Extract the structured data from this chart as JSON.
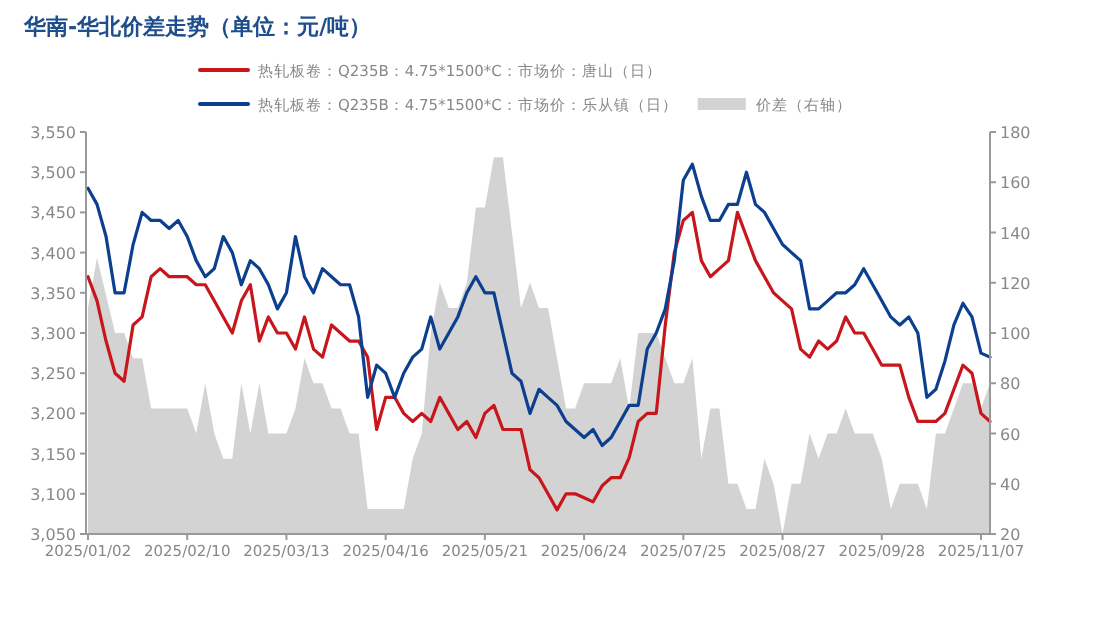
{
  "chart_data": {
    "type": "line",
    "title": "华南-华北价差走势（单位：元/吨）",
    "categories": [
      "2025/01/02",
      null,
      null,
      null,
      null,
      null,
      null,
      null,
      null,
      null,
      null,
      "2025/02/10",
      null,
      null,
      null,
      null,
      null,
      null,
      null,
      null,
      null,
      null,
      "2025/03/13",
      null,
      null,
      null,
      null,
      null,
      null,
      null,
      null,
      null,
      null,
      "2025/04/16",
      null,
      null,
      null,
      null,
      null,
      null,
      null,
      null,
      null,
      null,
      "2025/05/21",
      null,
      null,
      null,
      null,
      null,
      null,
      null,
      null,
      null,
      null,
      "2025/06/24",
      null,
      null,
      null,
      null,
      null,
      null,
      null,
      null,
      null,
      null,
      "2025/07/25",
      null,
      null,
      null,
      null,
      null,
      null,
      null,
      null,
      null,
      null,
      "2025/08/27",
      null,
      null,
      null,
      null,
      null,
      null,
      null,
      null,
      null,
      null,
      "2025/09/28",
      null,
      null,
      null,
      null,
      null,
      null,
      null,
      null,
      null,
      null,
      "2025/11/07",
      null
    ],
    "series": [
      {
        "name": "价差（右轴）",
        "type": "area",
        "axis": "y2",
        "color": "#d3d3d3",
        "values": [
          110,
          130,
          115,
          100,
          100,
          90,
          90,
          70,
          70,
          70,
          70,
          70,
          60,
          80,
          60,
          50,
          50,
          80,
          60,
          80,
          60,
          60,
          60,
          70,
          90,
          80,
          80,
          70,
          70,
          60,
          60,
          30,
          30,
          30,
          30,
          30,
          50,
          60,
          100,
          120,
          110,
          110,
          120,
          150,
          150,
          170,
          170,
          140,
          110,
          120,
          110,
          110,
          90,
          70,
          70,
          80,
          80,
          80,
          80,
          90,
          70,
          100,
          100,
          100,
          90,
          80,
          80,
          90,
          50,
          70,
          70,
          40,
          40,
          30,
          30,
          50,
          40,
          20,
          40,
          40,
          60,
          50,
          60,
          60,
          70,
          60,
          60,
          60,
          50,
          30,
          40,
          40,
          40,
          30,
          60,
          60,
          70,
          80,
          80,
          70,
          80
        ]
      },
      {
        "name": "热轧板卷：Q235B：4.75*1500*C：市场价：唐山（日）",
        "color": "#c8161d",
        "values": [
          3370,
          3340,
          3290,
          3250,
          3240,
          3310,
          3320,
          3370,
          3380,
          3370,
          3370,
          3370,
          3360,
          3360,
          3340,
          3320,
          3300,
          3340,
          3360,
          3290,
          3320,
          3300,
          3300,
          3280,
          3320,
          3280,
          3270,
          3310,
          3300,
          3290,
          3290,
          3270,
          3180,
          3220,
          3220,
          3200,
          3190,
          3200,
          3190,
          3220,
          3200,
          3180,
          3190,
          3170,
          3200,
          3210,
          3180,
          3180,
          3180,
          3130,
          3120,
          3100,
          3080,
          3100,
          3100,
          3095,
          3090,
          3110,
          3120,
          3120,
          3145,
          3190,
          3200,
          3200,
          3310,
          3400,
          3440,
          3450,
          3390,
          3370,
          3380,
          3390,
          3450,
          3420,
          3390,
          3370,
          3350,
          3340,
          3330,
          3280,
          3270,
          3290,
          3280,
          3290,
          3320,
          3300,
          3300,
          3280,
          3260,
          3260,
          3260,
          3220,
          3190,
          3190,
          3190,
          3200,
          3230,
          3260,
          3250,
          3200,
          3190
        ]
      },
      {
        "name": "热轧板卷：Q235B：4.75*1500*C：市场价：乐从镇（日）",
        "color": "#0d3f8f",
        "values": [
          3480,
          3460,
          3420,
          3350,
          3350,
          3410,
          3450,
          3440,
          3440,
          3430,
          3440,
          3420,
          3390,
          3370,
          3380,
          3420,
          3400,
          3360,
          3390,
          3380,
          3360,
          3330,
          3350,
          3420,
          3370,
          3350,
          3380,
          3370,
          3360,
          3360,
          3320,
          3220,
          3260,
          3250,
          3220,
          3250,
          3270,
          3280,
          3320,
          3280,
          3300,
          3320,
          3350,
          3370,
          3350,
          3350,
          3300,
          3250,
          3240,
          3200,
          3230,
          3220,
          3210,
          3190,
          3180,
          3170,
          3180,
          3160,
          3170,
          3190,
          3210,
          3210,
          3280,
          3300,
          3330,
          3390,
          3490,
          3510,
          3470,
          3440,
          3440,
          3460,
          3460,
          3500,
          3460,
          3450,
          3430,
          3410,
          3400,
          3390,
          3330,
          3330,
          3340,
          3350,
          3350,
          3360,
          3380,
          3360,
          3340,
          3320,
          3310,
          3320,
          3300,
          3220,
          3230,
          3265,
          3310,
          3337,
          3320,
          3275,
          3270
        ]
      }
    ],
    "ylim": [
      3050,
      3550
    ],
    "yticks": [
      {
        "value": 3050,
        "label": "3,050"
      },
      {
        "value": 3100,
        "label": "3,100"
      },
      {
        "value": 3150,
        "label": "3,150"
      },
      {
        "value": 3200,
        "label": "3,200"
      },
      {
        "value": 3250,
        "label": "3,250"
      },
      {
        "value": 3300,
        "label": "3,300"
      },
      {
        "value": 3350,
        "label": "3,350"
      },
      {
        "value": 3400,
        "label": "3,400"
      },
      {
        "value": 3450,
        "label": "3,450"
      },
      {
        "value": 3500,
        "label": "3,500"
      },
      {
        "value": 3550,
        "label": "3,550"
      }
    ],
    "y2lim": [
      20,
      180
    ],
    "y2ticks": [
      20,
      40,
      60,
      80,
      100,
      120,
      140,
      160,
      180
    ],
    "legend": "top",
    "grid": false
  }
}
